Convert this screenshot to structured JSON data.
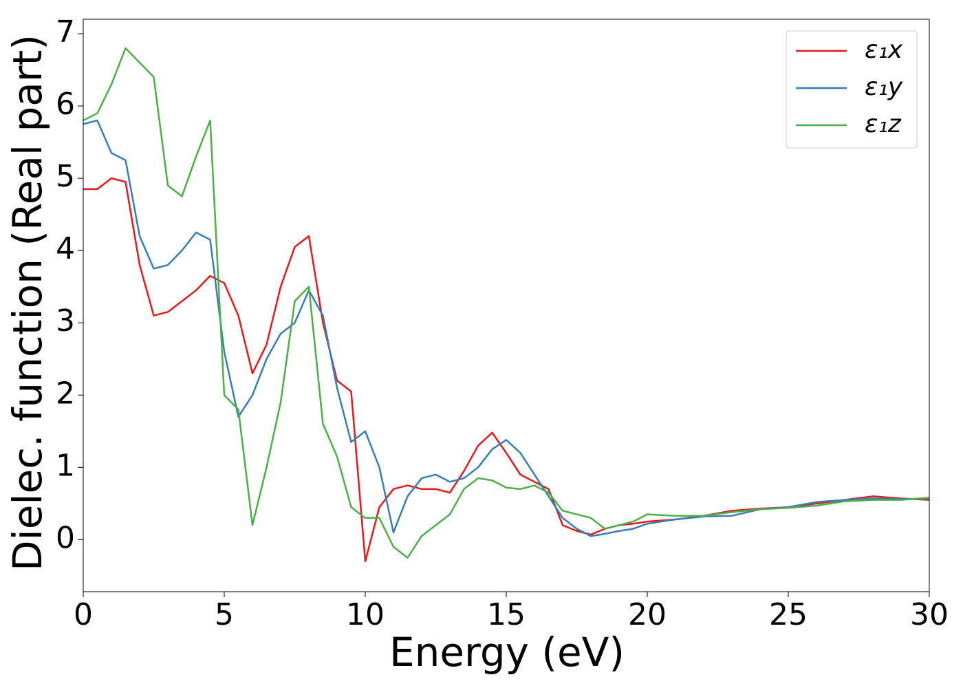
{
  "chart_data": {
    "type": "line",
    "x_label": "Energy (eV)",
    "y_label": "Dielec. function (Real part)",
    "x": [
      0,
      0.5,
      1,
      1.5,
      2,
      2.5,
      3,
      3.5,
      4,
      4.5,
      5,
      5.5,
      6,
      6.5,
      7,
      7.5,
      8,
      8.5,
      9,
      9.5,
      10,
      10.5,
      11,
      11.5,
      12,
      12.5,
      13,
      13.5,
      14,
      14.5,
      15,
      15.5,
      16,
      16.5,
      17,
      17.5,
      18,
      18.5,
      19,
      19.5,
      20,
      21,
      22,
      23,
      24,
      25,
      26,
      27,
      28,
      29,
      30
    ],
    "series": [
      {
        "name": "ε₁x",
        "color": "#e41a1c",
        "values": [
          4.85,
          4.85,
          5.0,
          4.95,
          3.8,
          3.1,
          3.15,
          3.3,
          3.45,
          3.65,
          3.55,
          3.1,
          2.3,
          2.7,
          3.5,
          4.05,
          4.2,
          3.0,
          2.2,
          2.05,
          -0.3,
          0.45,
          0.7,
          0.75,
          0.7,
          0.7,
          0.65,
          0.95,
          1.3,
          1.48,
          1.2,
          0.9,
          0.8,
          0.7,
          0.2,
          0.12,
          0.07,
          0.15,
          0.2,
          0.22,
          0.25,
          0.28,
          0.33,
          0.4,
          0.43,
          0.45,
          0.5,
          0.55,
          0.6,
          0.57,
          0.55
        ]
      },
      {
        "name": "ε₁y",
        "color": "#377eb8",
        "values": [
          5.75,
          5.8,
          5.35,
          5.25,
          4.2,
          3.75,
          3.8,
          4.0,
          4.25,
          4.15,
          2.6,
          1.7,
          2.0,
          2.5,
          2.85,
          3.0,
          3.45,
          3.1,
          2.1,
          1.35,
          1.5,
          1.0,
          0.1,
          0.6,
          0.85,
          0.9,
          0.8,
          0.85,
          1.0,
          1.25,
          1.38,
          1.2,
          0.9,
          0.6,
          0.3,
          0.15,
          0.05,
          0.08,
          0.12,
          0.15,
          0.22,
          0.28,
          0.32,
          0.33,
          0.42,
          0.45,
          0.52,
          0.55,
          0.57,
          0.56,
          0.57
        ]
      },
      {
        "name": "ε₁z",
        "color": "#4daf4a",
        "values": [
          5.8,
          5.9,
          6.3,
          6.8,
          6.6,
          6.4,
          4.9,
          4.75,
          5.3,
          5.8,
          2.0,
          1.8,
          0.2,
          1.0,
          1.9,
          3.3,
          3.5,
          1.6,
          1.15,
          0.45,
          0.3,
          0.3,
          -0.1,
          -0.25,
          0.05,
          0.2,
          0.35,
          0.7,
          0.85,
          0.82,
          0.72,
          0.7,
          0.75,
          0.65,
          0.4,
          0.35,
          0.3,
          0.15,
          0.2,
          0.25,
          0.35,
          0.33,
          0.33,
          0.38,
          0.42,
          0.44,
          0.47,
          0.53,
          0.55,
          0.55,
          0.58
        ]
      }
    ],
    "xlim": [
      0,
      30
    ],
    "xticks": [
      0,
      5,
      10,
      15,
      20,
      25,
      30
    ],
    "ylim": [
      -0.72,
      7.2
    ],
    "yticks": [
      0,
      1,
      2,
      3,
      4,
      5,
      6,
      7
    ],
    "legend": "upper right",
    "grid": false
  }
}
